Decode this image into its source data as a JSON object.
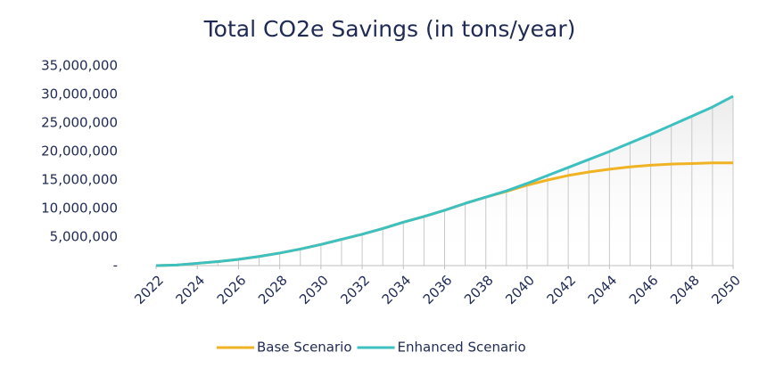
{
  "chart_data": {
    "type": "line",
    "title": "Total CO2e Savings (in tons/year)",
    "x": [
      2022,
      2023,
      2024,
      2025,
      2026,
      2027,
      2028,
      2029,
      2030,
      2031,
      2032,
      2033,
      2034,
      2035,
      2036,
      2037,
      2038,
      2039,
      2040,
      2041,
      2042,
      2043,
      2044,
      2045,
      2046,
      2047,
      2048,
      2049,
      2050
    ],
    "series": [
      {
        "name": "Base Scenario",
        "color": "#f0b323",
        "values": [
          0,
          100000,
          400000,
          700000,
          1100000,
          1600000,
          2200000,
          2900000,
          3700000,
          4600000,
          5500000,
          6500000,
          7600000,
          8600000,
          9700000,
          10900000,
          12000000,
          13000000,
          14100000,
          15000000,
          15800000,
          16400000,
          16900000,
          17300000,
          17600000,
          17800000,
          17900000,
          18000000,
          18000000
        ]
      },
      {
        "name": "Enhanced Scenario",
        "color": "#3cc0c0",
        "values": [
          0,
          100000,
          400000,
          700000,
          1100000,
          1600000,
          2200000,
          2900000,
          3700000,
          4600000,
          5500000,
          6500000,
          7600000,
          8600000,
          9700000,
          10900000,
          12000000,
          13100000,
          14400000,
          15800000,
          17200000,
          18600000,
          20000000,
          21500000,
          23000000,
          24600000,
          26200000,
          27800000,
          29700000
        ]
      }
    ],
    "xlim": [
      2022,
      2050
    ],
    "xticks": [
      2022,
      2024,
      2026,
      2028,
      2030,
      2032,
      2034,
      2036,
      2038,
      2040,
      2042,
      2044,
      2046,
      2048,
      2050
    ],
    "ylim": [
      0,
      35000000
    ],
    "yticks": [
      {
        "value": 0,
        "label": "-"
      },
      {
        "value": 5000000,
        "label": "5,000,000"
      },
      {
        "value": 10000000,
        "label": "10,000,000"
      },
      {
        "value": 15000000,
        "label": "15,000,000"
      },
      {
        "value": 20000000,
        "label": "20,000,000"
      },
      {
        "value": 25000000,
        "label": "25,000,000"
      },
      {
        "value": 30000000,
        "label": "30,000,000"
      },
      {
        "value": 35000000,
        "label": "35,000,000"
      }
    ],
    "grid": false,
    "legend": "bottom"
  }
}
